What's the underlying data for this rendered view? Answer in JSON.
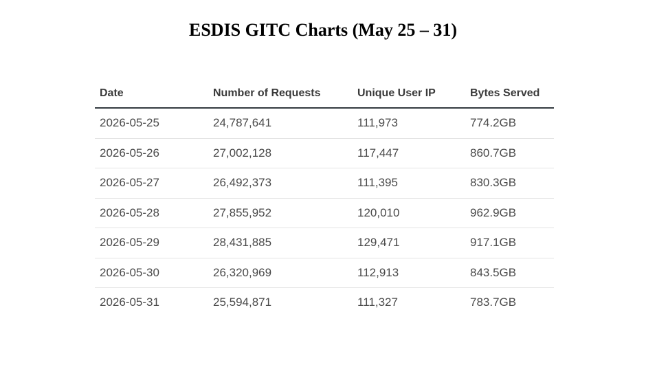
{
  "title": "ESDIS GITC Charts (May 25 – 31)",
  "table": {
    "headers": [
      "Date",
      "Number of Requests",
      "Unique User IP",
      "Bytes Served"
    ],
    "rows": [
      [
        "2026-05-25",
        "24,787,641",
        "111,973",
        "774.2GB"
      ],
      [
        "2026-05-26",
        "27,002,128",
        "117,447",
        "860.7GB"
      ],
      [
        "2026-05-27",
        "26,492,373",
        "111,395",
        "830.3GB"
      ],
      [
        "2026-05-28",
        "27,855,952",
        "120,010",
        "962.9GB"
      ],
      [
        "2026-05-29",
        "28,431,885",
        "129,471",
        "917.1GB"
      ],
      [
        "2026-05-30",
        "26,320,969",
        "112,913",
        "843.5GB"
      ],
      [
        "2026-05-31",
        "25,594,871",
        "111,327",
        "783.7GB"
      ]
    ]
  }
}
